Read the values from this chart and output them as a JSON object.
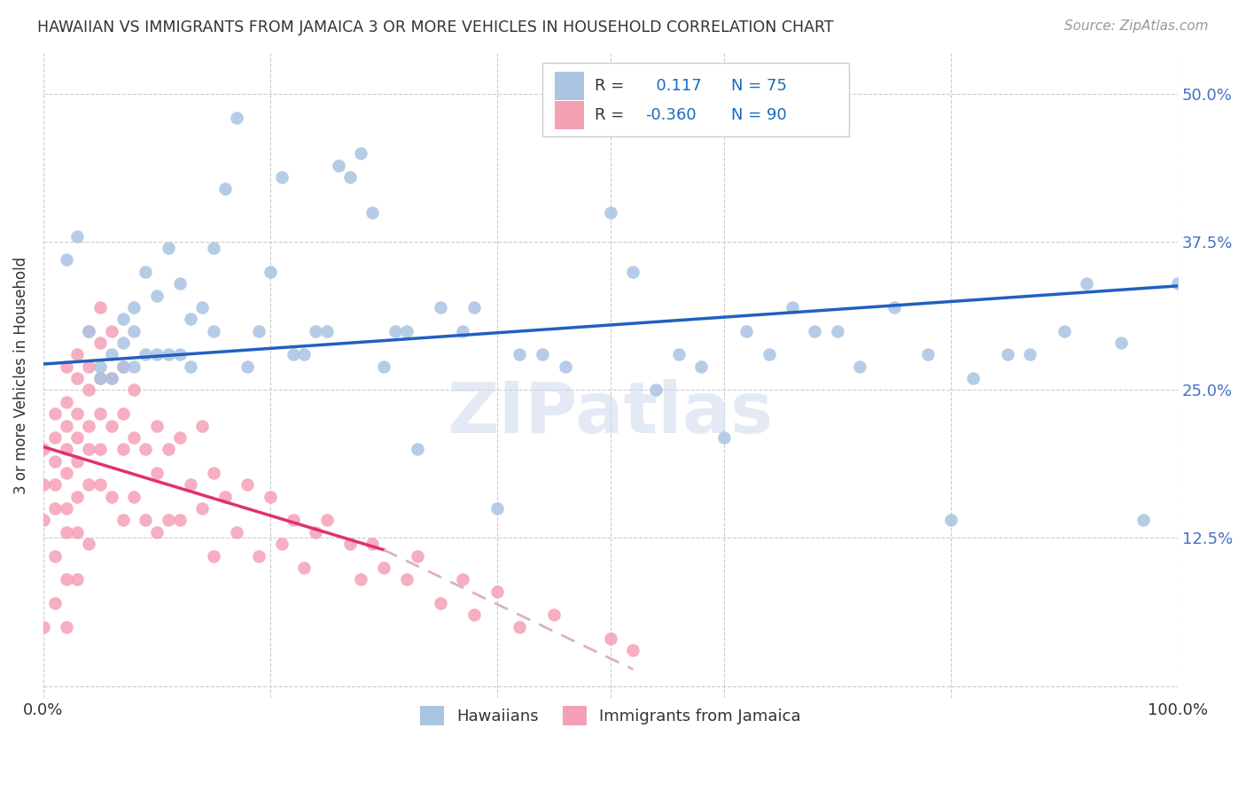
{
  "title": "HAWAIIAN VS IMMIGRANTS FROM JAMAICA 3 OR MORE VEHICLES IN HOUSEHOLD CORRELATION CHART",
  "source": "Source: ZipAtlas.com",
  "ylabel": "3 or more Vehicles in Household",
  "yticks": [
    0.0,
    0.125,
    0.25,
    0.375,
    0.5
  ],
  "ytick_labels": [
    "",
    "12.5%",
    "25.0%",
    "37.5%",
    "50.0%"
  ],
  "xlim": [
    0.0,
    1.0
  ],
  "ylim": [
    -0.01,
    0.535
  ],
  "R_hawaiian": 0.117,
  "N_hawaiian": 75,
  "R_jamaica": -0.36,
  "N_jamaica": 90,
  "hawaiian_color": "#aac4e2",
  "jamaica_color": "#f5a0b5",
  "trend_hawaiian_color": "#2060c0",
  "trend_jamaica_solid_color": "#e03070",
  "trend_jamaica_dashed_color": "#dbb0c8",
  "watermark_color": "#ccdaf0",
  "background_color": "#ffffff",
  "legend_text_color": "#1a6bbf",
  "legend_label_color": "#333333",
  "ytick_color": "#4472c4",
  "hawaiian_scatter_x": [
    0.02,
    0.03,
    0.04,
    0.05,
    0.05,
    0.06,
    0.06,
    0.07,
    0.07,
    0.07,
    0.08,
    0.08,
    0.08,
    0.09,
    0.09,
    0.1,
    0.1,
    0.11,
    0.11,
    0.12,
    0.12,
    0.13,
    0.13,
    0.14,
    0.15,
    0.15,
    0.16,
    0.17,
    0.18,
    0.19,
    0.2,
    0.21,
    0.22,
    0.23,
    0.24,
    0.25,
    0.26,
    0.27,
    0.28,
    0.29,
    0.3,
    0.31,
    0.32,
    0.33,
    0.35,
    0.37,
    0.38,
    0.4,
    0.42,
    0.44,
    0.46,
    0.48,
    0.5,
    0.52,
    0.54,
    0.56,
    0.58,
    0.6,
    0.62,
    0.64,
    0.66,
    0.68,
    0.7,
    0.72,
    0.75,
    0.78,
    0.8,
    0.82,
    0.85,
    0.87,
    0.9,
    0.92,
    0.95,
    0.97,
    1.0
  ],
  "hawaiian_scatter_y": [
    0.36,
    0.38,
    0.3,
    0.27,
    0.26,
    0.28,
    0.26,
    0.31,
    0.29,
    0.27,
    0.32,
    0.3,
    0.27,
    0.35,
    0.28,
    0.33,
    0.28,
    0.37,
    0.28,
    0.34,
    0.28,
    0.31,
    0.27,
    0.32,
    0.37,
    0.3,
    0.42,
    0.48,
    0.27,
    0.3,
    0.35,
    0.43,
    0.28,
    0.28,
    0.3,
    0.3,
    0.44,
    0.43,
    0.45,
    0.4,
    0.27,
    0.3,
    0.3,
    0.2,
    0.32,
    0.3,
    0.32,
    0.15,
    0.28,
    0.28,
    0.27,
    0.5,
    0.4,
    0.35,
    0.25,
    0.28,
    0.27,
    0.21,
    0.3,
    0.28,
    0.32,
    0.3,
    0.3,
    0.27,
    0.32,
    0.28,
    0.14,
    0.26,
    0.28,
    0.28,
    0.3,
    0.34,
    0.29,
    0.14,
    0.34
  ],
  "jamaica_scatter_x": [
    0.0,
    0.0,
    0.0,
    0.0,
    0.01,
    0.01,
    0.01,
    0.01,
    0.01,
    0.01,
    0.01,
    0.02,
    0.02,
    0.02,
    0.02,
    0.02,
    0.02,
    0.02,
    0.02,
    0.02,
    0.03,
    0.03,
    0.03,
    0.03,
    0.03,
    0.03,
    0.03,
    0.03,
    0.04,
    0.04,
    0.04,
    0.04,
    0.04,
    0.04,
    0.04,
    0.05,
    0.05,
    0.05,
    0.05,
    0.05,
    0.05,
    0.06,
    0.06,
    0.06,
    0.06,
    0.07,
    0.07,
    0.07,
    0.07,
    0.08,
    0.08,
    0.08,
    0.09,
    0.09,
    0.1,
    0.1,
    0.1,
    0.11,
    0.11,
    0.12,
    0.12,
    0.13,
    0.14,
    0.14,
    0.15,
    0.15,
    0.16,
    0.17,
    0.18,
    0.19,
    0.2,
    0.21,
    0.22,
    0.23,
    0.24,
    0.25,
    0.27,
    0.28,
    0.29,
    0.3,
    0.32,
    0.33,
    0.35,
    0.37,
    0.38,
    0.4,
    0.42,
    0.45,
    0.5,
    0.52
  ],
  "jamaica_scatter_y": [
    0.2,
    0.17,
    0.14,
    0.05,
    0.23,
    0.21,
    0.19,
    0.17,
    0.15,
    0.11,
    0.07,
    0.27,
    0.24,
    0.22,
    0.2,
    0.18,
    0.15,
    0.13,
    0.09,
    0.05,
    0.28,
    0.26,
    0.23,
    0.21,
    0.19,
    0.16,
    0.13,
    0.09,
    0.3,
    0.27,
    0.25,
    0.22,
    0.2,
    0.17,
    0.12,
    0.32,
    0.29,
    0.26,
    0.23,
    0.2,
    0.17,
    0.3,
    0.26,
    0.22,
    0.16,
    0.27,
    0.23,
    0.2,
    0.14,
    0.25,
    0.21,
    0.16,
    0.2,
    0.14,
    0.22,
    0.18,
    0.13,
    0.2,
    0.14,
    0.21,
    0.14,
    0.17,
    0.22,
    0.15,
    0.18,
    0.11,
    0.16,
    0.13,
    0.17,
    0.11,
    0.16,
    0.12,
    0.14,
    0.1,
    0.13,
    0.14,
    0.12,
    0.09,
    0.12,
    0.1,
    0.09,
    0.11,
    0.07,
    0.09,
    0.06,
    0.08,
    0.05,
    0.06,
    0.04,
    0.03
  ],
  "trend_h_x0": 0.0,
  "trend_h_y0": 0.272,
  "trend_h_x1": 1.0,
  "trend_h_y1": 0.338,
  "trend_j_x0": 0.0,
  "trend_j_y0": 0.202,
  "trend_j_solid_x1": 0.3,
  "trend_j_y_solid_x1": 0.115,
  "trend_j_dashed_x1": 0.52,
  "trend_j_y_dashed_x1": 0.014
}
